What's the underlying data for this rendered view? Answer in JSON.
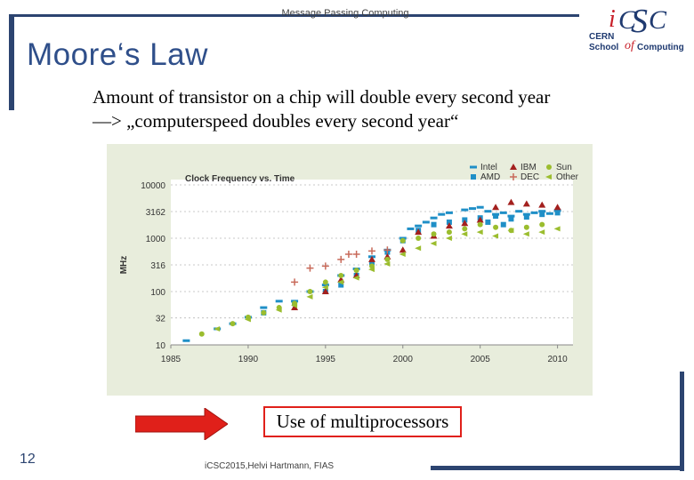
{
  "header": {
    "top_text": "Message Passing Computing"
  },
  "slide": {
    "title": "Moore‘s Law",
    "line1": "Amount of transistor on a chip will double every second  year",
    "line2": "—> „computerspeed doubles every second year“",
    "callout": "Use of multiprocessors",
    "page_number": "12",
    "footer": "iCSC2015,Helvi Hartmann, FIAS"
  },
  "logo": {
    "letters": [
      "i",
      "C",
      "S",
      "C"
    ],
    "line1": "CERN",
    "line2": "School",
    "of": "of",
    "line3": "Computing"
  },
  "colors": {
    "frame": "#2c4470",
    "title": "#2f4f8a",
    "callout_border": "#e0201a",
    "arrow": "#e0201a",
    "chart_bg": "#e8eddc",
    "Intel": "#1f8fc7",
    "AMD": "#1f8fc7",
    "IBM": "#a3201e",
    "DEC": "#c86a5a",
    "Sun": "#9bbd2e",
    "Other": "#9bbd2e"
  },
  "chart_data": {
    "type": "scatter",
    "title": "Clock Frequency vs. Time",
    "xlabel": "",
    "ylabel": "MHz",
    "log_y": true,
    "x_ticks": [
      "1985",
      "1990",
      "1995",
      "2000",
      "2005",
      "2010"
    ],
    "y_ticks": [
      "10",
      "32",
      "100",
      "316",
      "1000",
      "3162",
      "10000"
    ],
    "xlim": [
      1985,
      2011
    ],
    "ylim": [
      10,
      10000
    ],
    "legend_position": "top-right",
    "legend": [
      "Intel",
      "IBM",
      "Sun",
      "AMD",
      "DEC",
      "Other"
    ],
    "series": [
      {
        "name": "Intel",
        "marker": "dash",
        "points": [
          [
            1986,
            12
          ],
          [
            1988,
            20
          ],
          [
            1989,
            25
          ],
          [
            1990,
            33
          ],
          [
            1991,
            50
          ],
          [
            1992,
            66
          ],
          [
            1993,
            66
          ],
          [
            1994,
            100
          ],
          [
            1995,
            133
          ],
          [
            1996,
            200
          ],
          [
            1997,
            266
          ],
          [
            1998,
            450
          ],
          [
            1999,
            600
          ],
          [
            2000,
            1000
          ],
          [
            2000.5,
            1500
          ],
          [
            2001,
            1700
          ],
          [
            2001.5,
            2000
          ],
          [
            2002,
            2400
          ],
          [
            2002.5,
            2800
          ],
          [
            2003,
            3000
          ],
          [
            2004,
            3400
          ],
          [
            2004.5,
            3600
          ],
          [
            2005,
            3800
          ],
          [
            2005.5,
            3200
          ],
          [
            2006,
            2800
          ],
          [
            2006.5,
            3000
          ],
          [
            2007,
            2600
          ],
          [
            2007.5,
            3200
          ],
          [
            2008,
            2800
          ],
          [
            2008.5,
            3000
          ],
          [
            2009,
            3200
          ],
          [
            2009.5,
            2900
          ],
          [
            2010,
            3300
          ]
        ]
      },
      {
        "name": "AMD",
        "marker": "square",
        "points": [
          [
            1991,
            40
          ],
          [
            1993,
            60
          ],
          [
            1995,
            100
          ],
          [
            1996,
            133
          ],
          [
            1997,
            200
          ],
          [
            1998,
            350
          ],
          [
            1999,
            550
          ],
          [
            2000,
            900
          ],
          [
            2001,
            1400
          ],
          [
            2002,
            1800
          ],
          [
            2003,
            2000
          ],
          [
            2004,
            2200
          ],
          [
            2005,
            2400
          ],
          [
            2006,
            2600
          ],
          [
            2007,
            2300
          ],
          [
            2008,
            2500
          ],
          [
            2009,
            2800
          ],
          [
            2010,
            3000
          ],
          [
            2005.5,
            2000
          ],
          [
            2006.5,
            1800
          ]
        ]
      },
      {
        "name": "IBM",
        "marker": "triangle",
        "points": [
          [
            1993,
            50
          ],
          [
            1995,
            100
          ],
          [
            1996,
            166
          ],
          [
            1997,
            200
          ],
          [
            1998,
            400
          ],
          [
            1999,
            450
          ],
          [
            2000,
            600
          ],
          [
            2001,
            1300
          ],
          [
            2002,
            1100
          ],
          [
            2003,
            1700
          ],
          [
            2004,
            1900
          ],
          [
            2005,
            2200
          ],
          [
            2006,
            3800
          ],
          [
            2007,
            4700
          ],
          [
            2008,
            4400
          ],
          [
            2009,
            4200
          ],
          [
            2010,
            3800
          ]
        ]
      },
      {
        "name": "DEC",
        "marker": "plus",
        "points": [
          [
            1993,
            150
          ],
          [
            1994,
            275
          ],
          [
            1995,
            300
          ],
          [
            1996,
            400
          ],
          [
            1996.5,
            500
          ],
          [
            1997,
            500
          ],
          [
            1998,
            575
          ],
          [
            1999,
            600
          ]
        ]
      },
      {
        "name": "Sun",
        "marker": "circle",
        "points": [
          [
            1987,
            16
          ],
          [
            1989,
            25
          ],
          [
            1990,
            33
          ],
          [
            1991,
            40
          ],
          [
            1992,
            50
          ],
          [
            1993,
            60
          ],
          [
            1994,
            100
          ],
          [
            1995,
            150
          ],
          [
            1996,
            200
          ],
          [
            1997,
            250
          ],
          [
            1998,
            300
          ],
          [
            1999,
            400
          ],
          [
            2000,
            900
          ],
          [
            2001,
            1000
          ],
          [
            2002,
            1200
          ],
          [
            2003,
            1300
          ],
          [
            2004,
            1500
          ],
          [
            2005,
            1800
          ],
          [
            2006,
            1600
          ],
          [
            2007,
            1400
          ],
          [
            2008,
            1600
          ],
          [
            2009,
            1800
          ]
        ]
      },
      {
        "name": "Other",
        "marker": "triangle-left",
        "points": [
          [
            1988,
            20
          ],
          [
            1990,
            30
          ],
          [
            1992,
            45
          ],
          [
            1993,
            55
          ],
          [
            1994,
            80
          ],
          [
            1995,
            120
          ],
          [
            1996,
            150
          ],
          [
            1997,
            180
          ],
          [
            1998,
            260
          ],
          [
            1999,
            330
          ],
          [
            2000,
            500
          ],
          [
            2001,
            650
          ],
          [
            2002,
            800
          ],
          [
            2003,
            1000
          ],
          [
            2004,
            1200
          ],
          [
            2005,
            1300
          ],
          [
            2006,
            1100
          ],
          [
            2007,
            1400
          ],
          [
            2008,
            1200
          ],
          [
            2009,
            1300
          ],
          [
            2010,
            1500
          ]
        ]
      }
    ]
  }
}
